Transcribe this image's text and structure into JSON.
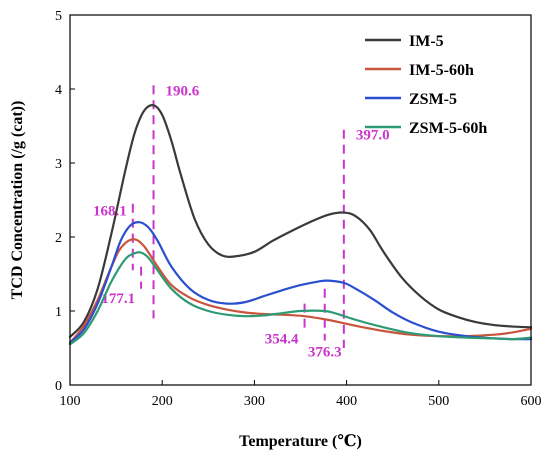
{
  "chart_data": {
    "type": "line",
    "title": "",
    "xlabel": "Temperature (℃)",
    "ylabel": "TCD Concentration (/g (cat))",
    "xlim": [
      100,
      600
    ],
    "ylim": [
      0,
      5
    ],
    "xticks": [
      "100",
      "200",
      "300",
      "400",
      "500",
      "600"
    ],
    "yticks": [
      "0",
      "1",
      "2",
      "3",
      "4",
      "5"
    ],
    "grid": false,
    "legend_position": "top-right",
    "annotation_color": "#cc33cc",
    "series": [
      {
        "name": "IM-5",
        "color": "#3a3a3a",
        "x": [
          100,
          115,
          130,
          145,
          160,
          170,
          180,
          190.6,
          200,
          210,
          220,
          235,
          250,
          265,
          280,
          300,
          320,
          340,
          360,
          380,
          397,
          410,
          425,
          440,
          460,
          480,
          500,
          520,
          540,
          560,
          580,
          600
        ],
        "y": [
          0.65,
          0.85,
          1.3,
          2.05,
          2.9,
          3.4,
          3.7,
          3.78,
          3.65,
          3.3,
          2.85,
          2.25,
          1.9,
          1.75,
          1.74,
          1.8,
          1.95,
          2.08,
          2.2,
          2.3,
          2.33,
          2.28,
          2.1,
          1.8,
          1.45,
          1.2,
          1.02,
          0.92,
          0.85,
          0.81,
          0.79,
          0.78
        ]
      },
      {
        "name": "IM-5-60h",
        "color": "#c8553d",
        "x": [
          100,
          115,
          130,
          145,
          155,
          168.1,
          180,
          195,
          210,
          230,
          250,
          270,
          290,
          310,
          330,
          354.4,
          380,
          410,
          440,
          470,
          500,
          530,
          560,
          580,
          600
        ],
        "y": [
          0.57,
          0.8,
          1.15,
          1.6,
          1.85,
          1.97,
          1.88,
          1.6,
          1.35,
          1.18,
          1.08,
          1.02,
          0.98,
          0.96,
          0.95,
          0.93,
          0.88,
          0.8,
          0.73,
          0.68,
          0.66,
          0.66,
          0.68,
          0.71,
          0.76
        ]
      },
      {
        "name": "ZSM-5",
        "color": "#2a4fcf",
        "x": [
          100,
          115,
          130,
          145,
          155,
          165,
          175,
          185,
          195,
          210,
          230,
          250,
          270,
          290,
          310,
          330,
          350,
          370,
          380,
          397,
          410,
          430,
          450,
          470,
          500,
          530,
          560,
          580,
          600
        ],
        "y": [
          0.57,
          0.75,
          1.1,
          1.6,
          1.95,
          2.15,
          2.2,
          2.13,
          1.95,
          1.6,
          1.3,
          1.15,
          1.1,
          1.12,
          1.2,
          1.28,
          1.35,
          1.4,
          1.41,
          1.38,
          1.3,
          1.15,
          0.98,
          0.85,
          0.72,
          0.66,
          0.63,
          0.62,
          0.62
        ]
      },
      {
        "name": "ZSM-5-60h",
        "color": "#2e9a74",
        "x": [
          100,
          115,
          130,
          145,
          160,
          170,
          177.1,
          185,
          195,
          210,
          230,
          250,
          270,
          290,
          310,
          330,
          350,
          376.3,
          390,
          410,
          440,
          470,
          500,
          530,
          560,
          580,
          600
        ],
        "y": [
          0.55,
          0.7,
          1.0,
          1.4,
          1.7,
          1.78,
          1.79,
          1.72,
          1.55,
          1.3,
          1.1,
          1.0,
          0.95,
          0.93,
          0.94,
          0.97,
          1.0,
          1.0,
          0.96,
          0.88,
          0.78,
          0.7,
          0.66,
          0.64,
          0.63,
          0.62,
          0.64
        ]
      }
    ],
    "annotations": [
      {
        "label": "190.6",
        "x": 190.6,
        "y_top": 4.05,
        "y_bottom": 0.9,
        "label_side": "right"
      },
      {
        "label": "397.0",
        "x": 397.0,
        "y_top": 3.45,
        "y_bottom": 0.5,
        "label_side": "right"
      },
      {
        "label": "168.1",
        "x": 168.1,
        "y_top": 2.45,
        "y_bottom": 1.55,
        "label_side": "left-top"
      },
      {
        "label": "177.1",
        "x": 177.1,
        "y_top": 1.6,
        "y_bottom": 1.3,
        "label_side": "left-bottom"
      },
      {
        "label": "354.4",
        "x": 354.4,
        "y_top": 1.1,
        "y_bottom": 0.75,
        "label_side": "left-bottom"
      },
      {
        "label": "376.3",
        "x": 376.3,
        "y_top": 1.3,
        "y_bottom": 0.6,
        "label_side": "below"
      }
    ]
  }
}
